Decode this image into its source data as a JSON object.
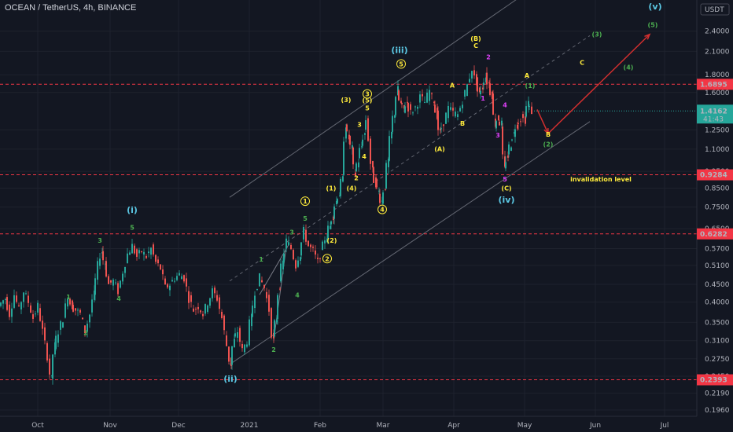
{
  "title": "OCEAN / TetherUS, 4h, BINANCE",
  "currency": "USDT",
  "chart_data": {
    "type": "candlestick",
    "y_scale": "log",
    "ylim": [
      0.188,
      2.95
    ],
    "x_ticks": [
      "Oct",
      "Nov",
      "Dec",
      "2021",
      "Feb",
      "Mar",
      "Apr",
      "May",
      "Jun",
      "Jul"
    ],
    "y_ticks": [
      "2.4000",
      "2.1000",
      "1.8000",
      "1.6000",
      "1.2500",
      "1.1000",
      "0.9500",
      "0.8500",
      "0.7500",
      "0.6500",
      "0.5700",
      "0.5100",
      "0.4500",
      "0.4000",
      "0.3500",
      "0.3100",
      "0.2750",
      "0.2450",
      "0.2190",
      "0.1960"
    ],
    "levels": [
      {
        "value": 1.6895,
        "label": "1.6895"
      },
      {
        "value": 0.9284,
        "label": "0.9284"
      },
      {
        "value": 0.6282,
        "label": "0.6282"
      },
      {
        "value": 0.2393,
        "label": "0.2393"
      }
    ],
    "last_price": {
      "value": 1.4162,
      "label": "1.4162",
      "countdown": "41:43"
    },
    "price_path": [
      [
        0,
        0.39
      ],
      [
        8,
        0.41
      ],
      [
        14,
        0.37
      ],
      [
        20,
        0.42
      ],
      [
        26,
        0.38
      ],
      [
        32,
        0.43
      ],
      [
        38,
        0.4
      ],
      [
        44,
        0.36
      ],
      [
        50,
        0.39
      ],
      [
        56,
        0.33
      ],
      [
        62,
        0.28
      ],
      [
        66,
        0.24
      ],
      [
        70,
        0.3
      ],
      [
        76,
        0.33
      ],
      [
        82,
        0.36
      ],
      [
        88,
        0.42
      ],
      [
        92,
        0.39
      ],
      [
        98,
        0.38
      ],
      [
        104,
        0.37
      ],
      [
        110,
        0.33
      ],
      [
        116,
        0.37
      ],
      [
        120,
        0.42
      ],
      [
        126,
        0.51
      ],
      [
        130,
        0.56
      ],
      [
        134,
        0.52
      ],
      [
        140,
        0.45
      ],
      [
        146,
        0.46
      ],
      [
        152,
        0.43
      ],
      [
        158,
        0.49
      ],
      [
        164,
        0.55
      ],
      [
        170,
        0.58
      ],
      [
        176,
        0.54
      ],
      [
        182,
        0.56
      ],
      [
        188,
        0.54
      ],
      [
        194,
        0.57
      ],
      [
        200,
        0.52
      ],
      [
        206,
        0.5
      ],
      [
        212,
        0.44
      ],
      [
        218,
        0.45
      ],
      [
        224,
        0.47
      ],
      [
        230,
        0.48
      ],
      [
        236,
        0.47
      ],
      [
        242,
        0.41
      ],
      [
        248,
        0.38
      ],
      [
        254,
        0.39
      ],
      [
        260,
        0.37
      ],
      [
        266,
        0.4
      ],
      [
        272,
        0.43
      ],
      [
        278,
        0.41
      ],
      [
        284,
        0.36
      ],
      [
        290,
        0.3
      ],
      [
        294,
        0.265
      ],
      [
        298,
        0.31
      ],
      [
        304,
        0.33
      ],
      [
        310,
        0.29
      ],
      [
        316,
        0.31
      ],
      [
        320,
        0.36
      ],
      [
        326,
        0.43
      ],
      [
        332,
        0.47
      ],
      [
        338,
        0.44
      ],
      [
        344,
        0.38
      ],
      [
        348,
        0.31
      ],
      [
        352,
        0.36
      ],
      [
        356,
        0.45
      ],
      [
        360,
        0.52
      ],
      [
        366,
        0.6
      ],
      [
        372,
        0.57
      ],
      [
        378,
        0.51
      ],
      [
        382,
        0.55
      ],
      [
        388,
        0.64
      ],
      [
        394,
        0.58
      ],
      [
        400,
        0.56
      ],
      [
        406,
        0.52
      ],
      [
        412,
        0.58
      ],
      [
        416,
        0.62
      ],
      [
        420,
        0.66
      ],
      [
        424,
        0.71
      ],
      [
        428,
        0.78
      ],
      [
        432,
        0.82
      ],
      [
        436,
        0.9
      ],
      [
        440,
        1.3
      ],
      [
        444,
        1.18
      ],
      [
        448,
        1.1
      ],
      [
        452,
        0.93
      ],
      [
        456,
        1.02
      ],
      [
        460,
        1.12
      ],
      [
        464,
        1.22
      ],
      [
        467,
        1.34
      ],
      [
        470,
        1.18
      ],
      [
        474,
        0.95
      ],
      [
        478,
        0.88
      ],
      [
        482,
        0.83
      ],
      [
        486,
        0.78
      ],
      [
        490,
        0.86
      ],
      [
        494,
        1.02
      ],
      [
        498,
        1.22
      ],
      [
        502,
        1.4
      ],
      [
        506,
        1.63
      ],
      [
        510,
        1.48
      ],
      [
        514,
        1.43
      ],
      [
        518,
        1.5
      ],
      [
        524,
        1.4
      ],
      [
        530,
        1.45
      ],
      [
        536,
        1.55
      ],
      [
        542,
        1.5
      ],
      [
        548,
        1.62
      ],
      [
        552,
        1.52
      ],
      [
        556,
        1.38
      ],
      [
        560,
        1.22
      ],
      [
        566,
        1.32
      ],
      [
        572,
        1.44
      ],
      [
        578,
        1.4
      ],
      [
        584,
        1.38
      ],
      [
        590,
        1.52
      ],
      [
        596,
        1.68
      ],
      [
        602,
        1.88
      ],
      [
        606,
        1.72
      ],
      [
        610,
        1.58
      ],
      [
        614,
        1.66
      ],
      [
        618,
        1.78
      ],
      [
        622,
        1.7
      ],
      [
        626,
        1.58
      ],
      [
        630,
        1.3
      ],
      [
        634,
        1.35
      ],
      [
        638,
        1.3
      ],
      [
        642,
        0.96
      ],
      [
        646,
        1.05
      ],
      [
        650,
        1.14
      ],
      [
        654,
        1.22
      ],
      [
        658,
        1.3
      ],
      [
        664,
        1.35
      ],
      [
        668,
        1.34
      ],
      [
        672,
        1.5
      ],
      [
        676,
        1.4162
      ]
    ],
    "channel_lines": [
      {
        "style": "solid",
        "points": [
          [
            292,
            0.265
          ],
          [
            750,
            1.32
          ]
        ]
      },
      {
        "style": "solid",
        "points": [
          [
            292,
            0.8
          ],
          [
            665,
            3.05
          ]
        ]
      },
      {
        "style": "dashed",
        "points": [
          [
            292,
            0.46
          ],
          [
            750,
            2.33
          ]
        ]
      }
    ],
    "wave_lines": [
      {
        "points": [
          [
            348,
            0.31
          ],
          [
            365,
            0.6
          ]
        ]
      },
      {
        "points": [
          [
            330,
            0.42
          ],
          [
            368,
            0.59
          ]
        ]
      }
    ],
    "arrows": [
      {
        "from": [
          683,
          1.43
        ],
        "to": [
          697,
          1.22
        ]
      },
      {
        "from": [
          697,
          1.22
        ],
        "to": [
          826,
          2.35
        ]
      }
    ],
    "wave_labels": [
      {
        "text": "3",
        "x": 127,
        "y": 0.593,
        "color": "#4caf50"
      },
      {
        "text": "5",
        "x": 168,
        "y": 0.645,
        "color": "#4caf50"
      },
      {
        "text": "(i)",
        "x": 168,
        "y": 0.722,
        "color": "#5bc8e4",
        "big": true
      },
      {
        "text": "1",
        "x": 87,
        "y": 0.408,
        "color": "#4caf50"
      },
      {
        "text": "4",
        "x": 151,
        "y": 0.403,
        "color": "#4caf50"
      },
      {
        "text": "2",
        "x": 109,
        "y": 0.322,
        "color": "#4caf50"
      },
      {
        "text": "(ii)",
        "x": 293,
        "y": 0.236,
        "color": "#5bc8e4",
        "big": true
      },
      {
        "text": "1",
        "x": 332,
        "y": 0.523,
        "color": "#4caf50"
      },
      {
        "text": "2",
        "x": 348,
        "y": 0.288,
        "color": "#4caf50"
      },
      {
        "text": "3",
        "x": 371,
        "y": 0.625,
        "color": "#4caf50"
      },
      {
        "text": "4",
        "x": 378,
        "y": 0.413,
        "color": "#4caf50"
      },
      {
        "text": "5",
        "x": 388,
        "y": 0.685,
        "color": "#4caf50"
      },
      {
        "text": "1",
        "x": 388,
        "y": 0.768,
        "color": "#ffeb3b",
        "circle": true
      },
      {
        "text": "2",
        "x": 416,
        "y": 0.525,
        "color": "#ffeb3b",
        "circle": true
      },
      {
        "text": "(2)",
        "x": 422,
        "y": 0.593,
        "color": "#ffeb3b"
      },
      {
        "text": "(1)",
        "x": 421,
        "y": 0.838,
        "color": "#ffeb3b"
      },
      {
        "text": "(4)",
        "x": 447,
        "y": 0.838,
        "color": "#ffeb3b"
      },
      {
        "text": "2",
        "x": 453,
        "y": 0.895,
        "color": "#ffeb3b"
      },
      {
        "text": "4",
        "x": 486,
        "y": 0.727,
        "color": "#ffeb3b",
        "circle": true
      },
      {
        "text": "4",
        "x": 463,
        "y": 1.032,
        "color": "#ffeb3b"
      },
      {
        "text": "3",
        "x": 457,
        "y": 1.274,
        "color": "#ffeb3b"
      },
      {
        "text": "(3)",
        "x": 440,
        "y": 1.502,
        "color": "#ffeb3b"
      },
      {
        "text": "3",
        "x": 467,
        "y": 1.56,
        "color": "#ffeb3b",
        "circle": true
      },
      {
        "text": "(5)",
        "x": 467,
        "y": 1.497,
        "color": "#ffeb3b"
      },
      {
        "text": "5",
        "x": 467,
        "y": 1.422,
        "color": "#ffeb3b"
      },
      {
        "text": "5",
        "x": 510,
        "y": 1.903,
        "color": "#ffeb3b",
        "circle": true
      },
      {
        "text": "(iii)",
        "x": 508,
        "y": 2.078,
        "color": "#5bc8e4",
        "big": true
      },
      {
        "text": "(A)",
        "x": 559,
        "y": 1.085,
        "color": "#ffeb3b"
      },
      {
        "text": "A",
        "x": 575,
        "y": 1.653,
        "color": "#ffeb3b"
      },
      {
        "text": "B",
        "x": 588,
        "y": 1.285,
        "color": "#ffeb3b"
      },
      {
        "text": "(B)",
        "x": 605,
        "y": 2.253,
        "color": "#ffeb3b"
      },
      {
        "text": "C",
        "x": 605,
        "y": 2.147,
        "color": "#ffeb3b"
      },
      {
        "text": "2",
        "x": 621,
        "y": 1.995,
        "color": "#e040fb"
      },
      {
        "text": "1",
        "x": 614,
        "y": 1.519,
        "color": "#e040fb"
      },
      {
        "text": "4",
        "x": 642,
        "y": 1.453,
        "color": "#e040fb"
      },
      {
        "text": "3",
        "x": 633,
        "y": 1.189,
        "color": "#e040fb"
      },
      {
        "text": "5",
        "x": 642,
        "y": 0.888,
        "color": "#e040fb"
      },
      {
        "text": "(C)",
        "x": 644,
        "y": 0.838,
        "color": "#ffeb3b"
      },
      {
        "text": "(iv)",
        "x": 644,
        "y": 0.772,
        "color": "#5bc8e4",
        "big": true
      },
      {
        "text": "A",
        "x": 670,
        "y": 1.764,
        "color": "#ffeb3b"
      },
      {
        "text": "(1)",
        "x": 674,
        "y": 1.649,
        "color": "#4caf50"
      },
      {
        "text": "B",
        "x": 697,
        "y": 1.195,
        "color": "#ffeb3b"
      },
      {
        "text": "(2)",
        "x": 697,
        "y": 1.12,
        "color": "#4caf50"
      },
      {
        "text": "C",
        "x": 740,
        "y": 1.921,
        "color": "#ffeb3b"
      },
      {
        "text": "(3)",
        "x": 759,
        "y": 2.318,
        "color": "#4caf50"
      },
      {
        "text": "(4)",
        "x": 799,
        "y": 1.862,
        "color": "#4caf50"
      },
      {
        "text": "(5)",
        "x": 830,
        "y": 2.466,
        "color": "#4caf50"
      },
      {
        "text": "(v)",
        "x": 833,
        "y": 2.772,
        "color": "#5bc8e4",
        "big": true
      }
    ],
    "annotations": [
      {
        "text": "invalidation level",
        "x": 764,
        "y": 0.889,
        "color": "#ffeb3b"
      }
    ]
  }
}
